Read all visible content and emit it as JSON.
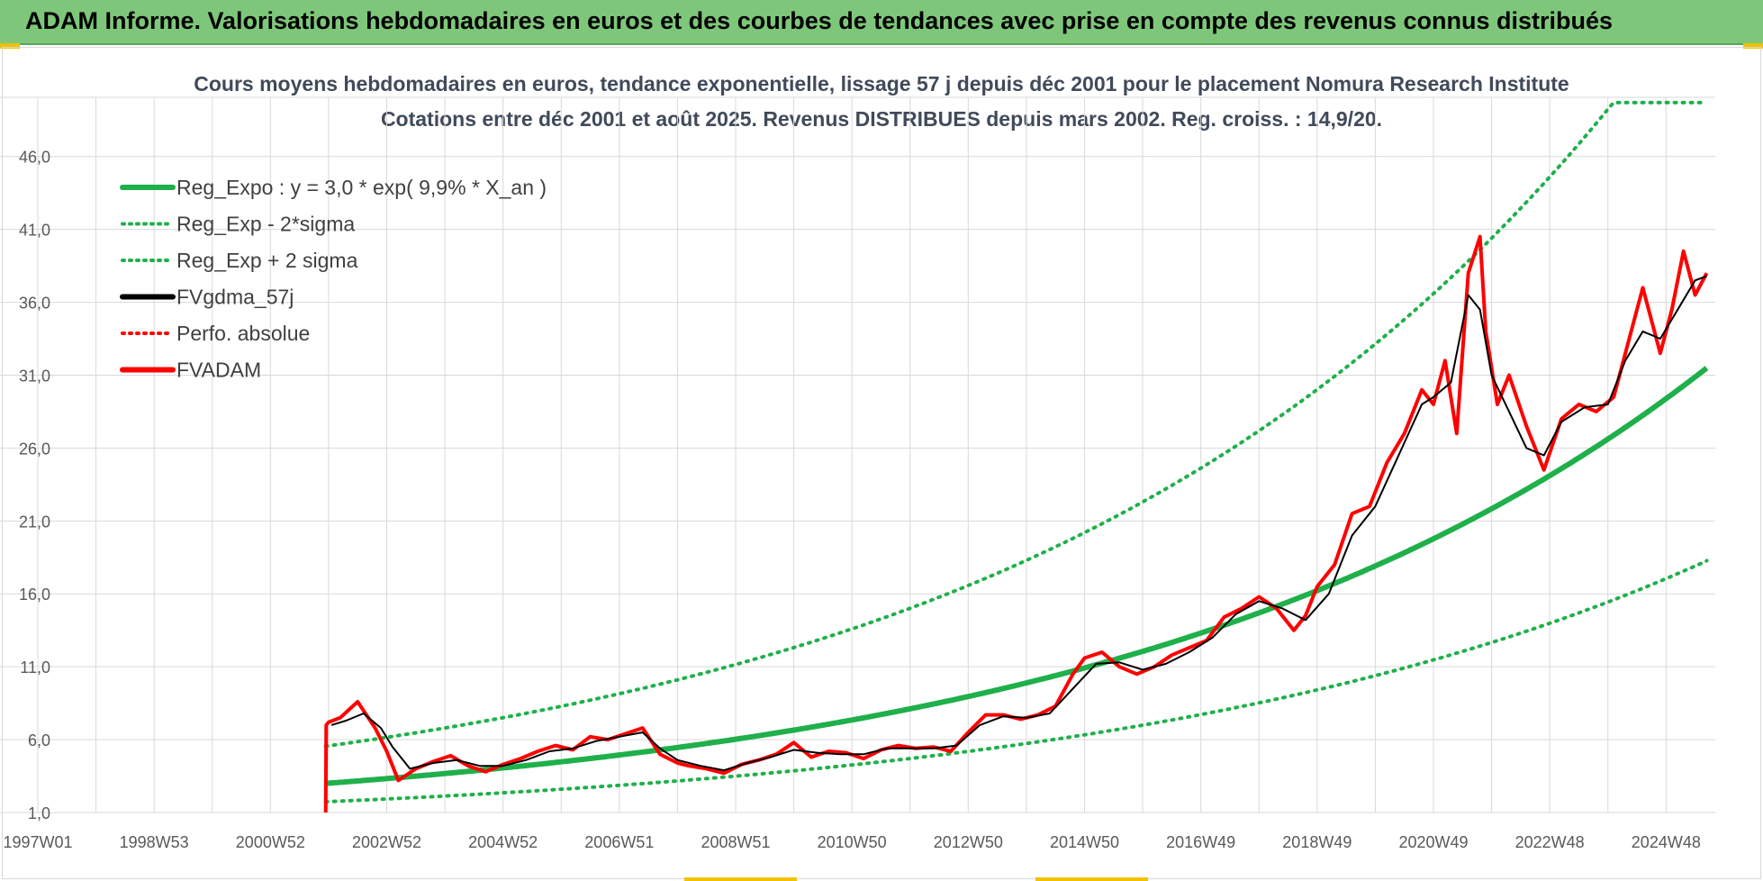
{
  "header": {
    "title": "ADAM Informe. Valorisations hebdomadaires en euros et des courbes de tendances avec prise en compte des revenus connus distribués"
  },
  "colors": {
    "banner": "#7ec77a",
    "trend": "#1fb04b",
    "moving_average": "#000000",
    "price": "#ff0000",
    "grid": "#d9d9d9",
    "text": "#595959"
  },
  "chart_data": {
    "type": "line",
    "title": "Cours moyens hebdomadaires en euros, tendance exponentielle, lissage 57 j depuis déc 2001 pour le placement Nomura Research Institute",
    "subtitle": "Cotations entre déc 2001 et août 2025. Revenus DISTRIBUES depuis mars 2002. Reg. croiss. : 14,9/20.",
    "x_tick_labels": [
      "1997W01",
      "1998W53",
      "2000W52",
      "2002W52",
      "2004W52",
      "2006W51",
      "2008W51",
      "2010W50",
      "2012W50",
      "2014W50",
      "2016W49",
      "2018W49",
      "2020W49",
      "2022W48",
      "2024W48"
    ],
    "x_range": [
      1997.0,
      2025.8
    ],
    "y_ticks": [
      "1,0",
      "6,0",
      "11,0",
      "16,0",
      "21,0",
      "26,0",
      "31,0",
      "36,0",
      "41,0",
      "46,0"
    ],
    "ylim": [
      1.0,
      50.0
    ],
    "grid": true,
    "legend_position": "top-left",
    "legend": [
      {
        "label": "Reg_Expo : y = 3,0 * exp( 9,9% *  X_an )",
        "style": "solid",
        "color": "#1fb04b"
      },
      {
        "label": "Reg_Exp - 2*sigma",
        "style": "dotted",
        "color": "#1fb04b"
      },
      {
        "label": "Reg_Exp + 2 sigma",
        "style": "dotted",
        "color": "#1fb04b"
      },
      {
        "label": "FVgdma_57j",
        "style": "solid",
        "color": "#000000"
      },
      {
        "label": "Perfo. absolue",
        "style": "dotted",
        "color": "#ff0000"
      },
      {
        "label": "FVADAM",
        "style": "solid",
        "color": "#ff0000"
      }
    ],
    "trend": {
      "a": 3.0,
      "rate": 0.099,
      "x0": 2001.95,
      "lower_factor": 0.58,
      "upper_factor": 1.85,
      "x_end": 2025.7
    },
    "series": [
      {
        "name": "FVADAM",
        "x": [
          2001.95,
          2001.96,
          2002.0,
          2002.2,
          2002.5,
          2002.8,
          2003.0,
          2003.2,
          2003.5,
          2003.8,
          2004.1,
          2004.4,
          2004.7,
          2005.0,
          2005.3,
          2005.6,
          2005.9,
          2006.2,
          2006.5,
          2006.8,
          2007.1,
          2007.4,
          2007.7,
          2008.0,
          2008.2,
          2008.5,
          2008.8,
          2009.1,
          2009.4,
          2009.7,
          2010.0,
          2010.3,
          2010.6,
          2010.9,
          2011.2,
          2011.5,
          2011.8,
          2012.1,
          2012.4,
          2012.7,
          2013.0,
          2013.3,
          2013.6,
          2013.9,
          2014.2,
          2014.5,
          2014.8,
          2015.0,
          2015.3,
          2015.6,
          2015.9,
          2016.2,
          2016.5,
          2016.8,
          2017.1,
          2017.4,
          2017.7,
          2018.0,
          2018.3,
          2018.6,
          2018.8,
          2019.0,
          2019.3,
          2019.6,
          2019.9,
          2020.2,
          2020.5,
          2020.8,
          2021.0,
          2021.2,
          2021.4,
          2021.6,
          2021.8,
          2021.9,
          2022.1,
          2022.3,
          2022.6,
          2022.9,
          2023.2,
          2023.5,
          2023.8,
          2024.1,
          2024.4,
          2024.6,
          2024.9,
          2025.1,
          2025.3,
          2025.5,
          2025.7
        ],
        "y": [
          1.0,
          7.0,
          7.2,
          7.5,
          8.6,
          6.8,
          5.2,
          3.2,
          4.0,
          4.5,
          4.9,
          4.2,
          3.8,
          4.3,
          4.7,
          5.2,
          5.6,
          5.3,
          6.2,
          6.0,
          6.4,
          6.8,
          5.0,
          4.4,
          4.2,
          4.0,
          3.7,
          4.3,
          4.6,
          5.0,
          5.8,
          4.8,
          5.2,
          5.1,
          4.7,
          5.3,
          5.6,
          5.4,
          5.5,
          5.2,
          6.5,
          7.7,
          7.7,
          7.4,
          7.7,
          8.3,
          10.5,
          11.6,
          12.0,
          11.0,
          10.5,
          11.0,
          11.8,
          12.3,
          12.8,
          14.4,
          15.0,
          15.8,
          15.0,
          13.5,
          14.5,
          16.5,
          18.0,
          21.5,
          22.0,
          25.0,
          27.0,
          30.0,
          29.0,
          32.0,
          27.0,
          38.0,
          40.5,
          34.0,
          29.0,
          31.0,
          27.5,
          24.5,
          28.0,
          29.0,
          28.5,
          29.5,
          34.0,
          37.0,
          32.5,
          35.5,
          39.5,
          36.5,
          38.0
        ]
      },
      {
        "name": "FVgdma_57j",
        "x": [
          2002.05,
          2002.3,
          2002.6,
          2002.9,
          2003.1,
          2003.4,
          2003.8,
          2004.2,
          2004.6,
          2005.0,
          2005.4,
          2005.8,
          2006.2,
          2006.6,
          2007.0,
          2007.4,
          2007.7,
          2008.0,
          2008.4,
          2008.8,
          2009.2,
          2009.6,
          2010.0,
          2010.4,
          2010.8,
          2011.2,
          2011.6,
          2012.0,
          2012.4,
          2012.8,
          2013.2,
          2013.6,
          2014.0,
          2014.4,
          2014.8,
          2015.2,
          2015.6,
          2016.0,
          2016.4,
          2016.8,
          2017.2,
          2017.6,
          2018.0,
          2018.4,
          2018.8,
          2019.2,
          2019.6,
          2020.0,
          2020.4,
          2020.8,
          2021.0,
          2021.3,
          2021.6,
          2021.8,
          2022.0,
          2022.3,
          2022.6,
          2022.9,
          2023.2,
          2023.6,
          2024.0,
          2024.3,
          2024.6,
          2024.9,
          2025.2,
          2025.5,
          2025.7
        ],
        "y": [
          7.0,
          7.3,
          7.8,
          6.8,
          5.5,
          4.0,
          4.4,
          4.6,
          4.2,
          4.2,
          4.6,
          5.2,
          5.4,
          5.9,
          6.2,
          6.5,
          5.4,
          4.6,
          4.2,
          3.9,
          4.4,
          4.8,
          5.3,
          5.1,
          5.0,
          5.0,
          5.4,
          5.4,
          5.4,
          5.6,
          7.0,
          7.6,
          7.5,
          7.8,
          9.5,
          11.2,
          11.3,
          10.8,
          11.2,
          12.0,
          13.0,
          14.6,
          15.5,
          15.0,
          14.2,
          16.0,
          20.0,
          22.0,
          25.5,
          29.0,
          29.5,
          30.5,
          36.5,
          35.5,
          31.0,
          28.5,
          26.0,
          25.5,
          27.8,
          28.8,
          29.0,
          32.0,
          34.0,
          33.5,
          35.5,
          37.5,
          37.8
        ]
      }
    ]
  }
}
